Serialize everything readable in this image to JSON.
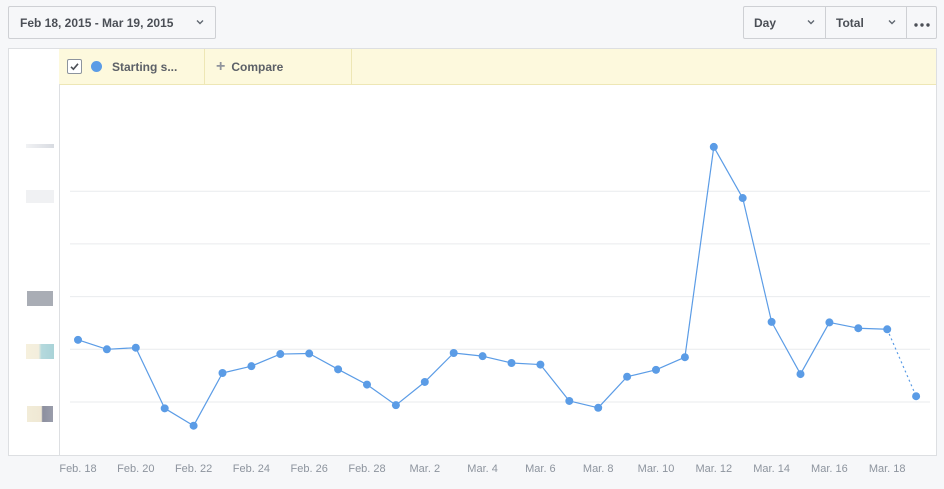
{
  "toolbar": {
    "date_range": "Feb 18, 2015 - Mar 19, 2015",
    "granularity": "Day",
    "aggregation": "Total",
    "more_icon": "ellipsis-icon"
  },
  "legend": {
    "series_label": "Starting s...",
    "series_checked": true,
    "compare_label": "Compare",
    "series_color": "#5b9ce6"
  },
  "chart_data": {
    "type": "line",
    "x": [
      "Feb. 18",
      "Feb. 19",
      "Feb. 20",
      "Feb. 21",
      "Feb. 22",
      "Feb. 23",
      "Feb. 24",
      "Feb. 25",
      "Feb. 26",
      "Feb. 27",
      "Feb. 28",
      "Mar. 1",
      "Mar. 2",
      "Mar. 3",
      "Mar. 4",
      "Mar. 5",
      "Mar. 6",
      "Mar. 7",
      "Mar. 8",
      "Mar. 9",
      "Mar. 10",
      "Mar. 11",
      "Mar. 12",
      "Mar. 13",
      "Mar. 14",
      "Mar. 15",
      "Mar. 16",
      "Mar. 17",
      "Mar. 18",
      "Mar. 19"
    ],
    "tick_labels": [
      "Feb. 18",
      "Feb. 20",
      "Feb. 22",
      "Feb. 24",
      "Feb. 26",
      "Feb. 28",
      "Mar. 2",
      "Mar. 4",
      "Mar. 6",
      "Mar. 8",
      "Mar. 10",
      "Mar. 12",
      "Mar. 14",
      "Mar. 16",
      "Mar. 18"
    ],
    "series": [
      {
        "values": [
          1.18,
          1.0,
          1.03,
          -0.12,
          -0.45,
          0.55,
          0.68,
          0.91,
          0.92,
          0.62,
          0.33,
          -0.06,
          0.38,
          0.93,
          0.87,
          0.74,
          0.71,
          0.02,
          -0.11,
          0.48,
          0.61,
          0.85,
          4.84,
          3.87,
          1.52,
          0.53,
          1.51,
          1.4,
          1.38,
          0.11
        ],
        "last_segment_dashed": true
      }
    ],
    "ylim": [
      -1,
      5
    ],
    "y_tick_labels_visible": false,
    "grid": true
  }
}
